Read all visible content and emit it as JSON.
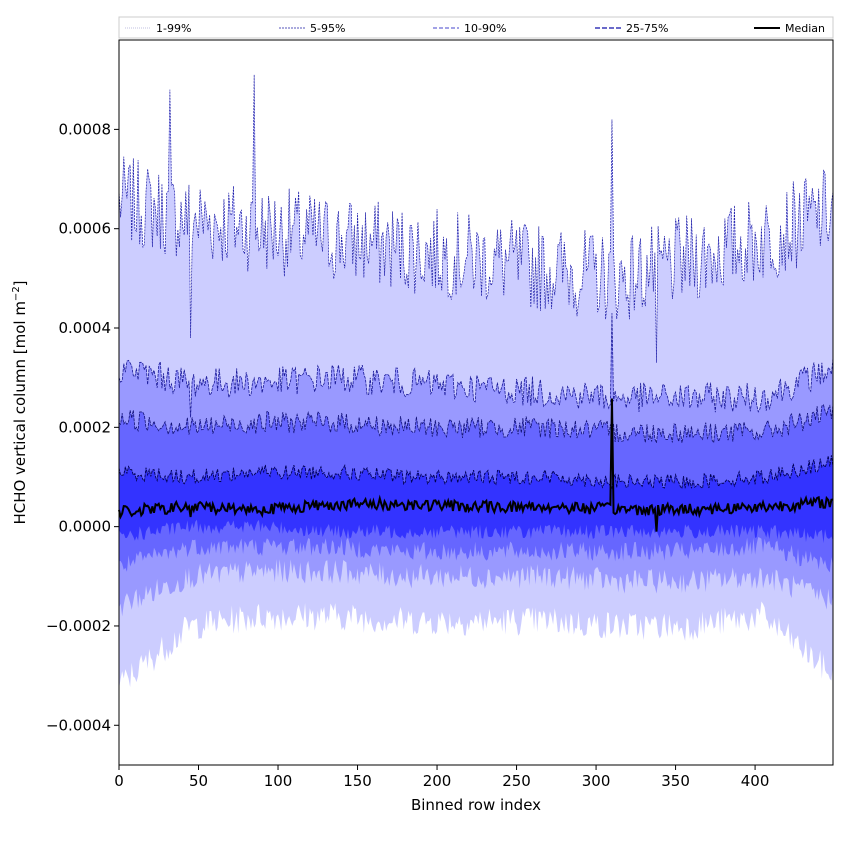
{
  "chart_data": {
    "type": "area",
    "title": "",
    "xlabel": "Binned row index",
    "ylabel_main": "HCHO vertical column [mol m",
    "ylabel_sup": "−2",
    "ylabel_tail": "]",
    "xlim": [
      0,
      449
    ],
    "ylim": [
      -0.00048,
      0.00098
    ],
    "x_ticks": [
      0,
      50,
      100,
      150,
      200,
      250,
      300,
      350,
      400
    ],
    "x_tick_labels": [
      "0",
      "50",
      "100",
      "150",
      "200",
      "250",
      "300",
      "350",
      "400"
    ],
    "y_ticks": [
      -0.0004,
      -0.0002,
      0.0,
      0.0002,
      0.0004,
      0.0006,
      0.0008
    ],
    "y_tick_labels": [
      "−0.0004",
      "−0.0002",
      "0.0000",
      "0.0002",
      "0.0004",
      "0.0006",
      "0.0008"
    ],
    "legend_position": "top, spanning full width",
    "series": [
      {
        "name": "1-99%",
        "upper": [
          0.00066,
          0.00062,
          0.0006,
          0.00058,
          0.00056,
          0.00054,
          0.00052,
          0.0005,
          0.00054,
          0.00058,
          0.00064
        ],
        "lower": [
          -0.00032,
          -0.0002,
          -0.00018,
          -0.00018,
          -0.00019,
          -0.00019,
          -0.00019,
          -0.0002,
          -0.0002,
          -0.00018,
          -0.0003
        ],
        "fill": "#cccdff",
        "line": "#c0c0e0"
      },
      {
        "name": "5-95%",
        "upper": [
          0.00066,
          0.00062,
          0.0006,
          0.00058,
          0.00056,
          0.00054,
          0.00052,
          0.0005,
          0.00054,
          0.00058,
          0.00064
        ],
        "lower": [
          -0.00016,
          -0.0001,
          -9e-05,
          -9e-05,
          -0.0001,
          -0.0001,
          -0.0001,
          -0.00011,
          -0.00011,
          -0.0001,
          -0.00015
        ],
        "fill": "#9999ff",
        "line": "#2222aa"
      },
      {
        "name": "10-90%",
        "upper": [
          0.00032,
          0.00029,
          0.00029,
          0.0003,
          0.00029,
          0.00028,
          0.00027,
          0.00026,
          0.00026,
          0.00026,
          0.00032
        ],
        "lower": [
          -8e-05,
          -4e-05,
          -4e-05,
          -4e-05,
          -5e-05,
          -5e-05,
          -5e-05,
          -5e-05,
          -5e-05,
          -4e-05,
          -8e-05
        ],
        "fill": "#6666ff",
        "line": "#4444cc"
      },
      {
        "name": "25-75%",
        "upper": [
          0.00022,
          0.0002,
          0.00021,
          0.00021,
          0.0002,
          0.0002,
          0.0002,
          0.00019,
          0.00019,
          0.00019,
          0.00023
        ],
        "lower": [
          -2e-05,
          0.0,
          0.0,
          -1e-05,
          -1e-05,
          -1e-05,
          -1e-05,
          -1e-05,
          -1e-05,
          -1e-05,
          -2e-05
        ],
        "fill": "#3333ff",
        "line": "#111188"
      },
      {
        "name": "Median",
        "values": [
          3e-05,
          4e-05,
          3.5e-05,
          4.5e-05,
          4.5e-05,
          4e-05,
          4e-05,
          3.5e-05,
          3.5e-05,
          4e-05,
          5e-05
        ],
        "line": "#000000"
      }
    ],
    "x_anchor_points": [
      0,
      45,
      90,
      135,
      180,
      225,
      270,
      315,
      360,
      405,
      449
    ],
    "inner_band_upper": [
      0.00011,
      0.0001,
      0.00011,
      0.00011,
      0.0001,
      0.0001,
      0.0001,
      9e-05,
      9e-05,
      0.0001,
      0.00013
    ]
  }
}
